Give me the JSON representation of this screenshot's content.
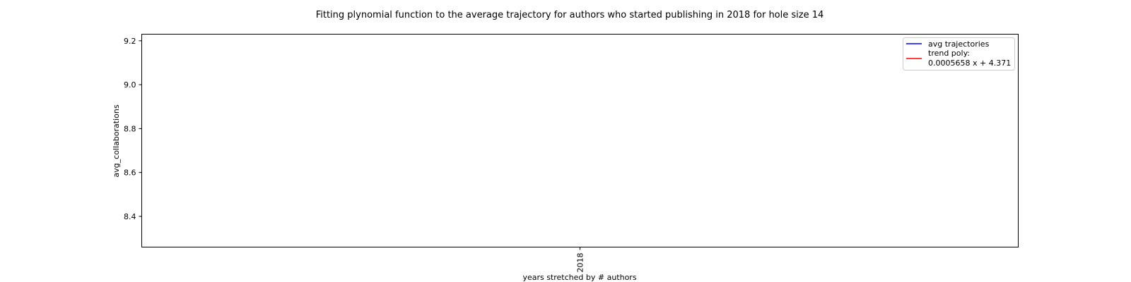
{
  "chart_data": {
    "type": "line",
    "title": "Fitting plynomial function to the average trajectory for authors who started publishing in 2018 for hole size 14",
    "xlabel": "years stretched by # authors",
    "ylabel": "avg_collaborations",
    "x_ticks": [
      "2018"
    ],
    "y_ticks": [
      8.4,
      8.6,
      8.8,
      9.0,
      9.2
    ],
    "ylim": [
      8.26,
      9.23
    ],
    "grid": false,
    "legend_position": "upper right",
    "series": [
      {
        "name": "avg trajectories",
        "color": "#0000ff",
        "x": [],
        "y": []
      },
      {
        "name": "trend poly:",
        "equation": "0.0005658 x + 4.371",
        "color": "#ff0000",
        "x": [],
        "y": []
      }
    ]
  }
}
